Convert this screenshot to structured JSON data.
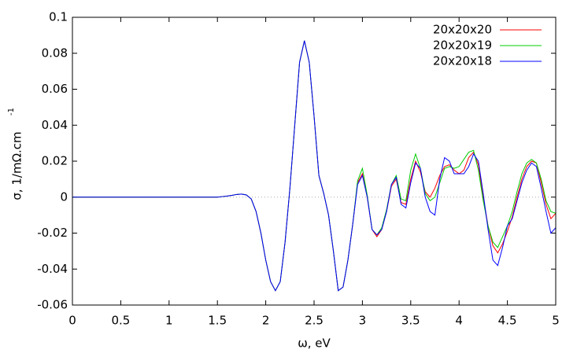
{
  "chart_data": {
    "type": "line",
    "x_label": "ω, eV",
    "y_label": "σ, 1/mΩ.cm",
    "y_label_superscript": "-1",
    "x": [
      0,
      0.5,
      1,
      1.5,
      1.55,
      1.6,
      1.65,
      1.7,
      1.75,
      1.8,
      1.85,
      1.9,
      1.95,
      2.0,
      2.05,
      2.1,
      2.15,
      2.2,
      2.25,
      2.3,
      2.35,
      2.4,
      2.45,
      2.5,
      2.55,
      2.6,
      2.65,
      2.7,
      2.75,
      2.8,
      2.85,
      2.9,
      2.95,
      3.0,
      3.05,
      3.1,
      3.15,
      3.2,
      3.25,
      3.3,
      3.35,
      3.4,
      3.45,
      3.5,
      3.55,
      3.6,
      3.65,
      3.7,
      3.75,
      3.8,
      3.85,
      3.9,
      3.95,
      4.0,
      4.05,
      4.1,
      4.15,
      4.2,
      4.25,
      4.3,
      4.35,
      4.4,
      4.45,
      4.5,
      4.55,
      4.6,
      4.65,
      4.7,
      4.75,
      4.8,
      4.85,
      4.9,
      4.95,
      5.0
    ],
    "series": [
      {
        "name": "20x20x20",
        "color": "#ff0000",
        "values": [
          0,
          0,
          0,
          0,
          0.0003,
          0.0006,
          0.001,
          0.0015,
          0.0017,
          0.0012,
          -0.001,
          -0.008,
          -0.02,
          -0.035,
          -0.047,
          -0.052,
          -0.047,
          -0.025,
          0.005,
          0.04,
          0.075,
          0.087,
          0.075,
          0.045,
          0.012,
          0.002,
          -0.01,
          -0.03,
          -0.052,
          -0.05,
          -0.035,
          -0.015,
          0.008,
          0.013,
          0.0,
          -0.018,
          -0.022,
          -0.018,
          -0.008,
          0.006,
          0.01,
          -0.003,
          -0.004,
          0.01,
          0.02,
          0.014,
          0.003,
          0.0,
          0.005,
          0.012,
          0.017,
          0.018,
          0.015,
          0.013,
          0.015,
          0.022,
          0.025,
          0.018,
          0.0,
          -0.016,
          -0.027,
          -0.031,
          -0.026,
          -0.019,
          -0.011,
          0.0,
          0.01,
          0.017,
          0.02,
          0.019,
          0.008,
          -0.004,
          -0.012,
          -0.009
        ]
      },
      {
        "name": "20x20x19",
        "color": "#00cc00",
        "values": [
          0,
          0,
          0,
          0,
          0.0003,
          0.0006,
          0.001,
          0.0015,
          0.0017,
          0.0012,
          -0.001,
          -0.008,
          -0.02,
          -0.035,
          -0.047,
          -0.052,
          -0.047,
          -0.025,
          0.005,
          0.04,
          0.075,
          0.087,
          0.075,
          0.045,
          0.012,
          0.002,
          -0.01,
          -0.03,
          -0.052,
          -0.05,
          -0.035,
          -0.015,
          0.009,
          0.016,
          0.001,
          -0.018,
          -0.021,
          -0.017,
          -0.007,
          0.007,
          0.012,
          -0.001,
          -0.002,
          0.015,
          0.024,
          0.016,
          0.002,
          -0.002,
          0.0,
          0.008,
          0.016,
          0.017,
          0.016,
          0.017,
          0.021,
          0.025,
          0.026,
          0.015,
          -0.002,
          -0.016,
          -0.025,
          -0.028,
          -0.022,
          -0.016,
          -0.008,
          0.003,
          0.013,
          0.019,
          0.021,
          0.019,
          0.01,
          -0.002,
          -0.008,
          -0.009
        ]
      },
      {
        "name": "20x20x18",
        "color": "#0000ff",
        "values": [
          0,
          0,
          0,
          0,
          0.0003,
          0.0006,
          0.001,
          0.0015,
          0.0017,
          0.0012,
          -0.001,
          -0.008,
          -0.02,
          -0.035,
          -0.047,
          -0.052,
          -0.047,
          -0.025,
          0.005,
          0.04,
          0.075,
          0.087,
          0.075,
          0.045,
          0.012,
          0.002,
          -0.01,
          -0.03,
          -0.052,
          -0.05,
          -0.035,
          -0.015,
          0.007,
          0.012,
          0.0,
          -0.018,
          -0.021,
          -0.018,
          -0.008,
          0.007,
          0.011,
          -0.004,
          -0.006,
          0.008,
          0.019,
          0.016,
          0.0,
          -0.008,
          -0.01,
          0.01,
          0.022,
          0.02,
          0.013,
          0.013,
          0.013,
          0.017,
          0.024,
          0.02,
          0.002,
          -0.018,
          -0.035,
          -0.038,
          -0.028,
          -0.016,
          -0.012,
          -0.002,
          0.008,
          0.015,
          0.019,
          0.017,
          0.005,
          -0.008,
          -0.02,
          -0.017
        ]
      }
    ],
    "xlim": [
      0,
      5
    ],
    "xticks": [
      0,
      0.5,
      1,
      1.5,
      2,
      2.5,
      3,
      3.5,
      4,
      4.5,
      5
    ],
    "ylim": [
      -0.06,
      0.1
    ],
    "yticks": [
      -0.06,
      -0.04,
      -0.02,
      0,
      0.02,
      0.04,
      0.06,
      0.08,
      0.1
    ],
    "zero_line": true,
    "legend": "top-right"
  }
}
